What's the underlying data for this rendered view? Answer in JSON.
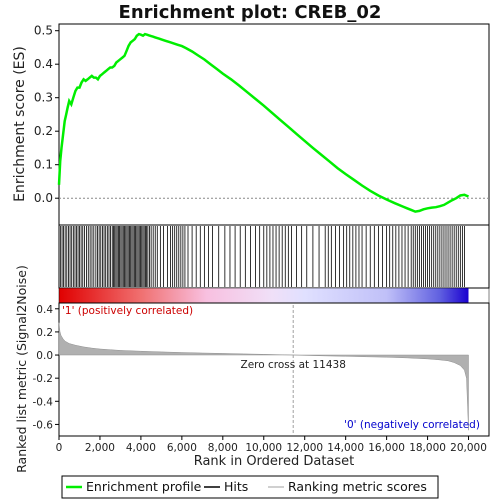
{
  "chart_data": {
    "type": "line",
    "title": "Enrichment plot: CREB_02",
    "es_panel": {
      "ylabel": "Enrichment score (ES)",
      "ylim": [
        -0.08,
        0.52
      ],
      "yticks": [
        0.0,
        0.1,
        0.2,
        0.3,
        0.4,
        0.5
      ],
      "series": [
        {
          "name": "Enrichment profile",
          "color": "#00ee00",
          "x": [
            0,
            60,
            120,
            200,
            280,
            350,
            420,
            500,
            600,
            700,
            800,
            900,
            1000,
            1100,
            1200,
            1300,
            1400,
            1500,
            1600,
            1700,
            1800,
            1900,
            2000,
            2100,
            2200,
            2300,
            2400,
            2500,
            2600,
            2700,
            2800,
            2900,
            3000,
            3100,
            3200,
            3300,
            3400,
            3500,
            3600,
            3700,
            3800,
            3900,
            4000,
            4100,
            4200,
            4300,
            4400,
            4500,
            4600,
            4700,
            4800,
            4900,
            5000,
            5200,
            5400,
            5600,
            5800,
            6000,
            6200,
            6500,
            6800,
            7100,
            7400,
            7700,
            8000,
            8400,
            8800,
            9200,
            9600,
            10000,
            10400,
            10800,
            11200,
            11600,
            12000,
            12400,
            12800,
            13200,
            13600,
            14000,
            14400,
            14800,
            15200,
            15600,
            16000,
            16400,
            16800,
            17000,
            17200,
            17400,
            17600,
            17800,
            18000,
            18200,
            18400,
            18600,
            18800,
            19000,
            19200,
            19400,
            19600,
            19800,
            20000
          ],
          "y": [
            0.04,
            0.11,
            0.15,
            0.19,
            0.23,
            0.25,
            0.27,
            0.29,
            0.28,
            0.3,
            0.32,
            0.33,
            0.33,
            0.345,
            0.355,
            0.35,
            0.355,
            0.36,
            0.365,
            0.36,
            0.36,
            0.355,
            0.365,
            0.37,
            0.375,
            0.38,
            0.385,
            0.39,
            0.39,
            0.395,
            0.405,
            0.41,
            0.415,
            0.42,
            0.425,
            0.44,
            0.455,
            0.465,
            0.47,
            0.475,
            0.485,
            0.49,
            0.488,
            0.485,
            0.49,
            0.488,
            0.486,
            0.484,
            0.482,
            0.48,
            0.478,
            0.476,
            0.474,
            0.47,
            0.466,
            0.462,
            0.458,
            0.454,
            0.448,
            0.438,
            0.426,
            0.414,
            0.4,
            0.386,
            0.372,
            0.355,
            0.336,
            0.316,
            0.296,
            0.276,
            0.255,
            0.234,
            0.213,
            0.192,
            0.171,
            0.15,
            0.13,
            0.11,
            0.09,
            0.072,
            0.055,
            0.038,
            0.022,
            0.008,
            -0.004,
            -0.015,
            -0.025,
            -0.03,
            -0.035,
            -0.04,
            -0.038,
            -0.033,
            -0.03,
            -0.028,
            -0.027,
            -0.024,
            -0.02,
            -0.013,
            -0.006,
            0.0,
            0.008,
            0.01,
            0.005
          ]
        }
      ]
    },
    "hits": [
      80,
      150,
      220,
      300,
      380,
      460,
      540,
      620,
      700,
      780,
      860,
      930,
      1000,
      1080,
      1160,
      1250,
      1340,
      1430,
      1520,
      1610,
      1700,
      1800,
      1880,
      1960,
      2040,
      2120,
      2200,
      2280,
      2360,
      2440,
      2520,
      2600,
      2660,
      2720,
      2780,
      2840,
      2900,
      2960,
      3020,
      3080,
      3140,
      3200,
      3260,
      3320,
      3380,
      3440,
      3500,
      3560,
      3620,
      3680,
      3740,
      3800,
      3860,
      3920,
      3980,
      4040,
      4100,
      4160,
      4220,
      4280,
      4340,
      4420,
      4500,
      4600,
      4700,
      4800,
      4950,
      5100,
      5300,
      5450,
      5550,
      5650,
      5750,
      5850,
      5950,
      6050,
      6150,
      6300,
      6500,
      6700,
      6900,
      7100,
      7300,
      7500,
      7800,
      8100,
      8350,
      8600,
      8850,
      9100,
      9350,
      9600,
      9800,
      10000,
      10150,
      10300,
      10450,
      10600,
      10750,
      10900,
      11050,
      11200,
      11350,
      11600,
      11850,
      12100,
      12400,
      12700,
      13000,
      13150,
      13300,
      13500,
      13700,
      13900,
      14050,
      14200,
      14350,
      14500,
      14650,
      14800,
      15000,
      15200,
      15400,
      15600,
      15800,
      16000,
      16150,
      16300,
      16450,
      16600,
      16750,
      16900,
      17050,
      17200,
      17300,
      17400,
      17500,
      17600,
      17700,
      17800,
      17900,
      18000,
      18100,
      18200,
      18300,
      18400,
      18500,
      18600,
      18700,
      18800,
      18900,
      19000,
      19100,
      19200,
      19300,
      19400,
      19500,
      19600,
      19700,
      19800
    ],
    "metric_panel": {
      "ylabel": "Ranked list metric (Signal2Noise)",
      "ylim": [
        -0.7,
        0.45
      ],
      "yticks": [
        -0.6,
        -0.4,
        -0.2,
        0.0,
        0.2,
        0.4
      ],
      "x": [
        0,
        50,
        100,
        200,
        300,
        500,
        800,
        1200,
        1600,
        2000,
        2500,
        3000,
        4000,
        5000,
        6000,
        7000,
        8000,
        9000,
        10000,
        11000,
        11438,
        12000,
        13000,
        14000,
        15000,
        16000,
        17000,
        18000,
        18500,
        19000,
        19300,
        19600,
        19800,
        19900,
        20000
      ],
      "values": [
        0.28,
        0.2,
        0.17,
        0.14,
        0.12,
        0.1,
        0.085,
        0.07,
        0.06,
        0.052,
        0.046,
        0.04,
        0.033,
        0.027,
        0.022,
        0.018,
        0.014,
        0.01,
        0.006,
        0.002,
        0.0,
        -0.003,
        -0.007,
        -0.011,
        -0.015,
        -0.019,
        -0.025,
        -0.033,
        -0.04,
        -0.05,
        -0.065,
        -0.09,
        -0.13,
        -0.2,
        -0.65
      ],
      "zero_cross_label": "Zero cross at 11438",
      "zero_cross": 11438,
      "pos_label": "'1' (positively correlated)",
      "neg_label": "'0' (negatively correlated)"
    },
    "xlabel": "Rank in Ordered Dataset",
    "xlim": [
      0,
      21000
    ],
    "xticks": [
      0,
      2000,
      4000,
      6000,
      8000,
      10000,
      12000,
      14000,
      16000,
      18000,
      20000
    ],
    "xtick_labels": [
      "0",
      "2,000",
      "4,000",
      "6,000",
      "8,000",
      "10,000",
      "12,000",
      "14,000",
      "16,000",
      "18,000",
      "20,000"
    ],
    "legend": {
      "placement": "bottom",
      "items": [
        {
          "label": "Enrichment profile",
          "color": "#00ee00",
          "kind": "line"
        },
        {
          "label": "Hits",
          "color": "#000000",
          "kind": "line"
        },
        {
          "label": "Ranking metric scores",
          "color": "#c0c0c0",
          "kind": "line"
        }
      ]
    },
    "colors": {
      "hits": "#000000",
      "metric_fill": "#b0b0b0",
      "pos_text": "#cc0000",
      "neg_text": "#0000cc",
      "zero_line": "#a0a0a0"
    }
  }
}
